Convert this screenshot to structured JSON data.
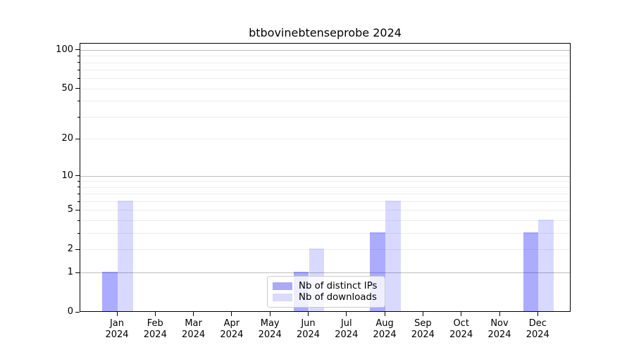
{
  "title": "btbovinebtenseprobe 2024",
  "chart_data": {
    "type": "bar",
    "title": "btbovinebtenseprobe 2024",
    "categories": [
      "Jan",
      "Feb",
      "Mar",
      "Apr",
      "May",
      "Jun",
      "Jul",
      "Aug",
      "Sep",
      "Oct",
      "Nov",
      "Dec"
    ],
    "category_year": "2024",
    "series": [
      {
        "name": "Nb of distinct IPs",
        "color": "#0000ff",
        "alpha": 0.33,
        "legend_color": "#abaaf3",
        "values": [
          1,
          0,
          0,
          0,
          0,
          1,
          0,
          3,
          0,
          0,
          0,
          3
        ]
      },
      {
        "name": "Nb of downloads",
        "color": "#0000ff",
        "alpha": 0.15,
        "legend_color": "#dadaf9",
        "values": [
          6,
          0,
          0,
          0,
          0,
          2,
          0,
          6,
          0,
          0,
          0,
          4
        ]
      }
    ],
    "yscale": "log1p",
    "ylim": [
      0,
      113
    ],
    "yticks_labeled": [
      100,
      50,
      20,
      10,
      5,
      2,
      1,
      0
    ],
    "grid_major_values": [
      1,
      10,
      100
    ],
    "grid_minor_values": [
      2,
      3,
      4,
      5,
      6,
      7,
      8,
      9,
      20,
      30,
      40,
      50,
      60,
      70,
      80,
      90
    ],
    "grid_major_color": "#bdbdbd",
    "grid_minor_color": "#ededed",
    "legend_position": "lower center",
    "xlabel": "",
    "ylabel": ""
  }
}
